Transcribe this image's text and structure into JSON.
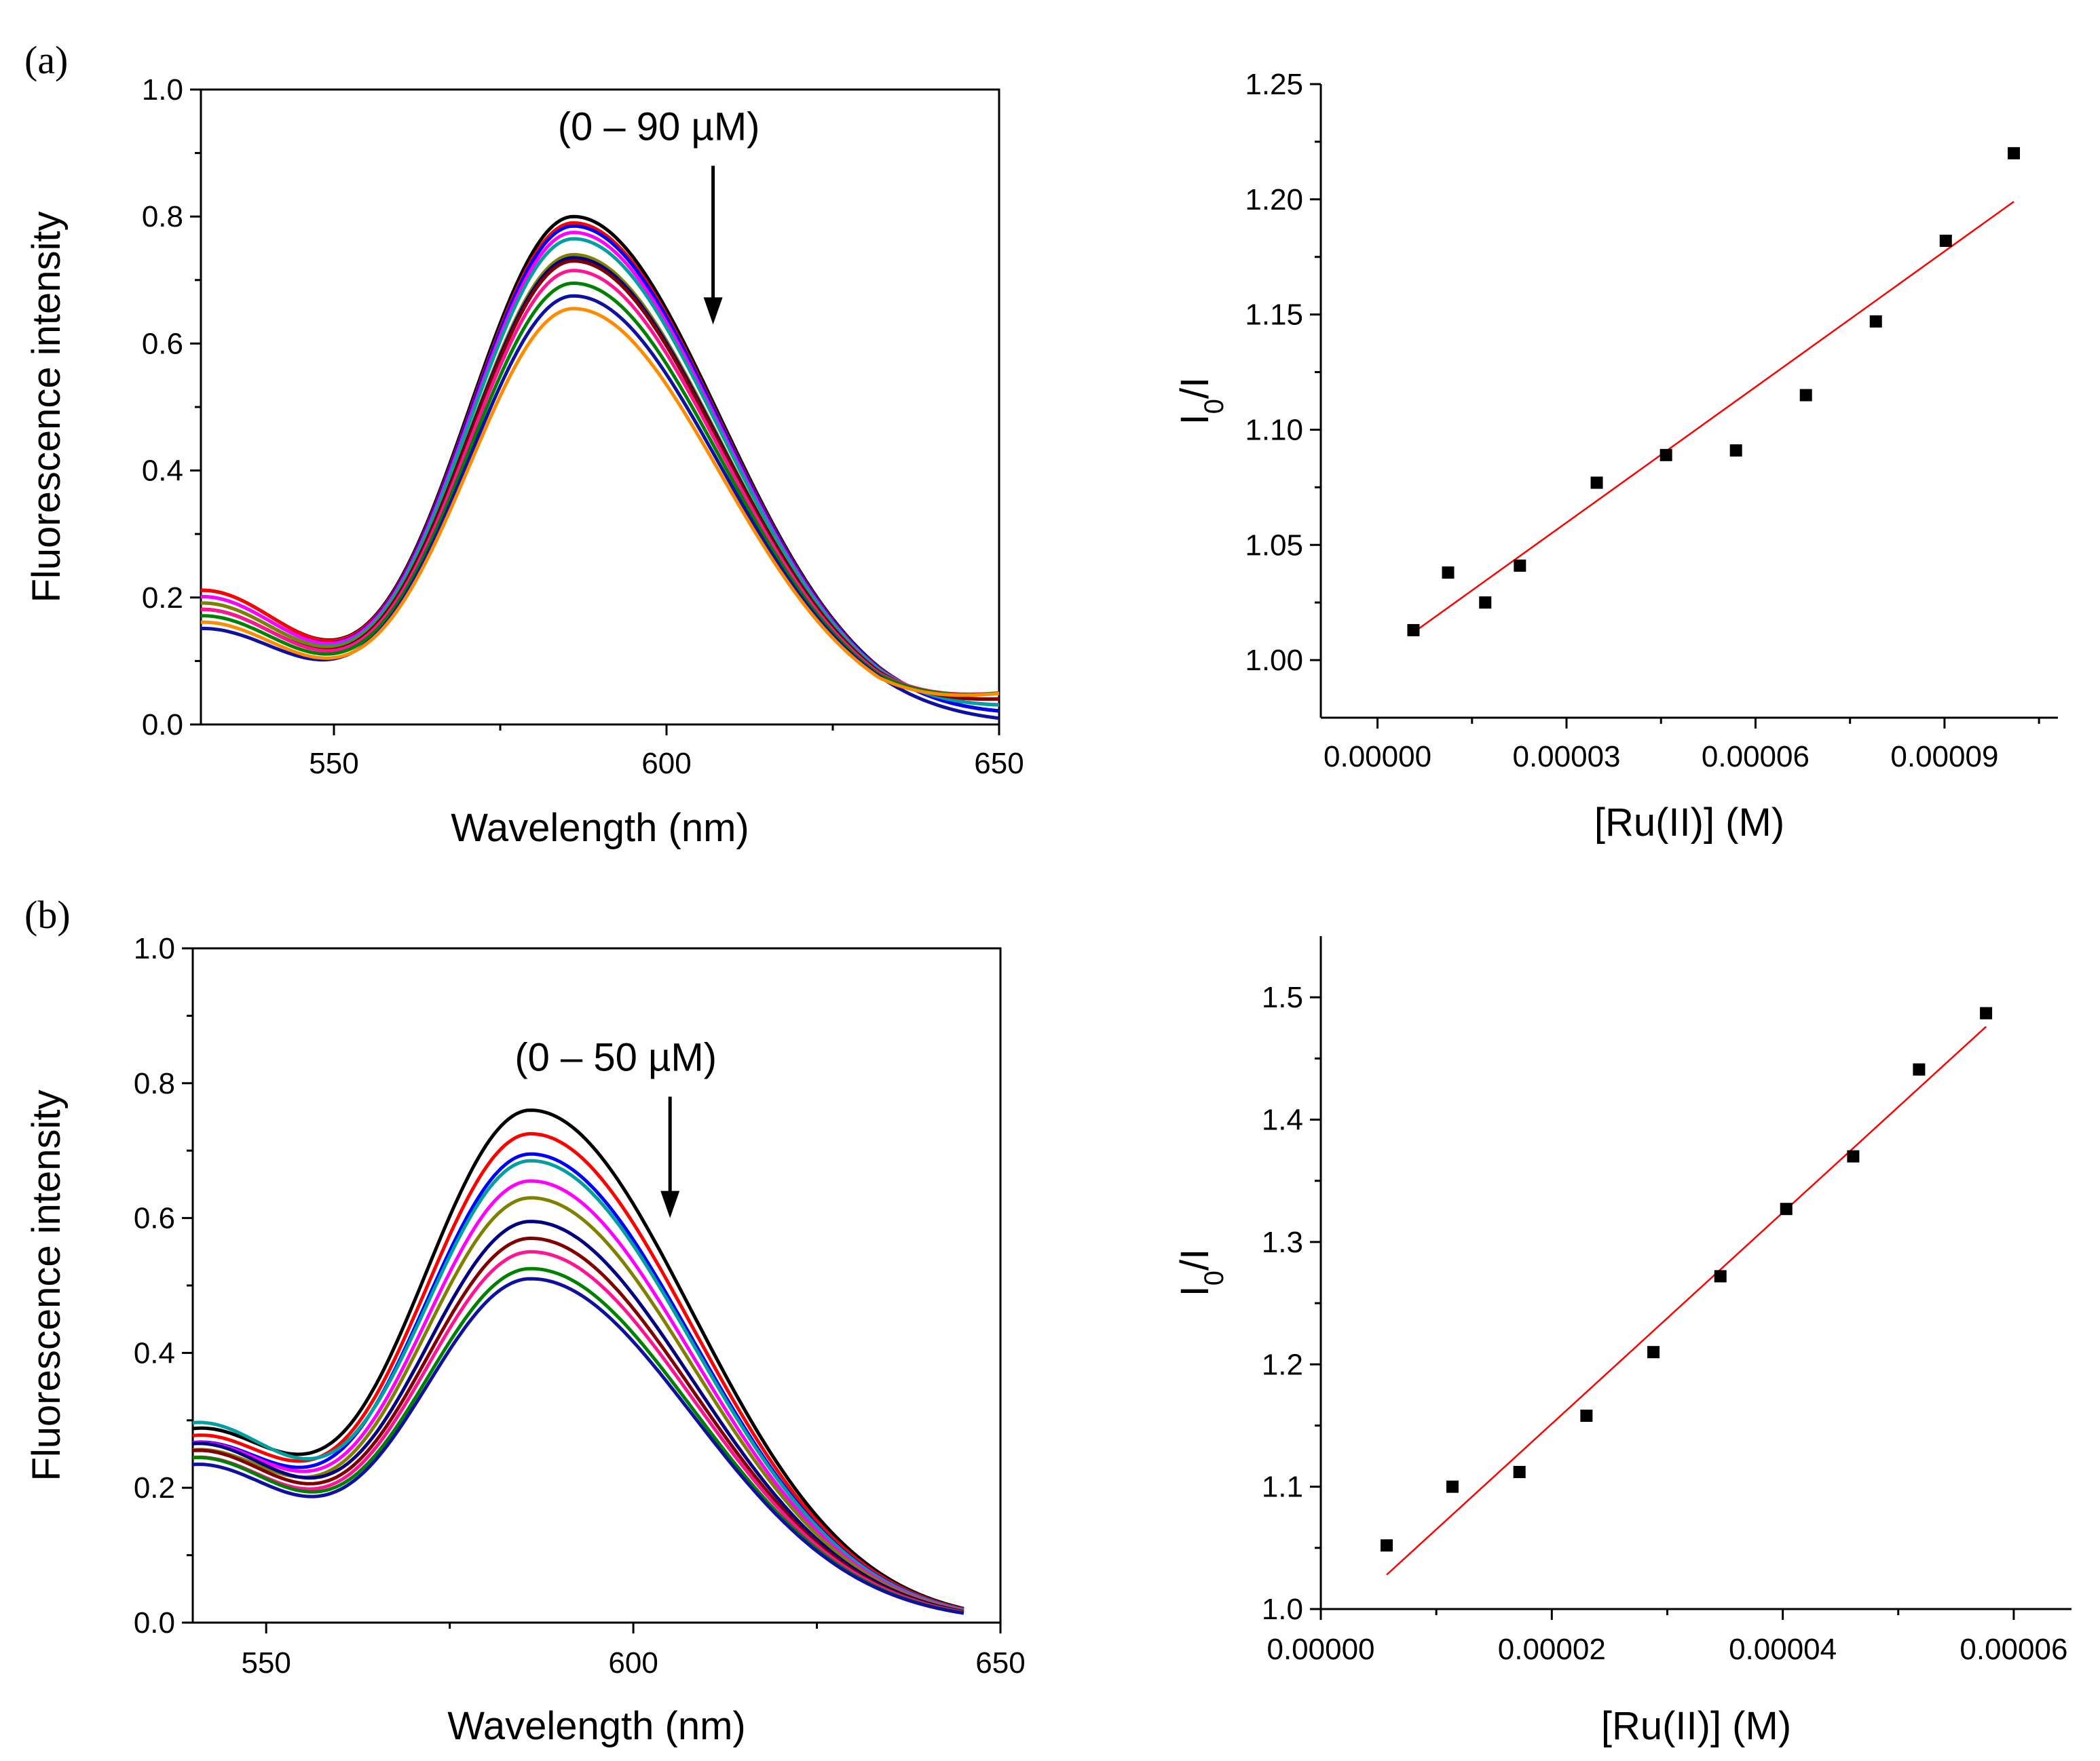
{
  "figure": {
    "panel_a_label": "(a)",
    "panel_b_label": "(b)"
  },
  "chart_data": [
    {
      "id": "a-spectra",
      "type": "line",
      "xlabel": "Wavelength (nm)",
      "ylabel": "Fluorescence intensity",
      "xlim": [
        530,
        650
      ],
      "ylim": [
        0.0,
        1.0
      ],
      "xticks": [
        550,
        600,
        650
      ],
      "xtick_labels": [
        "550",
        "600",
        "650"
      ],
      "yticks": [
        0.0,
        0.2,
        0.4,
        0.6,
        0.8,
        1.0
      ],
      "ytick_labels": [
        "0.0",
        "0.2",
        "0.4",
        "0.6",
        "0.8",
        "1.0"
      ],
      "annotation": "(0 – 90 µM)",
      "annotation_arrow": {
        "x": 607,
        "y_from": 0.88,
        "y_to": 0.63
      },
      "x_curve_end": 650,
      "series": [
        {
          "color": "#000000",
          "peak": 0.8,
          "start": 0.21,
          "end": 0.01
        },
        {
          "color": "#ff0000",
          "peak": 0.79,
          "start": 0.21,
          "end": 0.01
        },
        {
          "color": "#0000ff",
          "peak": 0.785,
          "start": 0.2,
          "end": 0.01
        },
        {
          "color": "#ff00ff",
          "peak": 0.775,
          "start": 0.2,
          "end": 0.02
        },
        {
          "color": "#00a0a0",
          "peak": 0.765,
          "start": 0.19,
          "end": 0.02
        },
        {
          "color": "#808000",
          "peak": 0.74,
          "start": 0.19,
          "end": 0.03
        },
        {
          "color": "#000080",
          "peak": 0.735,
          "start": 0.18,
          "end": 0.03
        },
        {
          "color": "#800000",
          "peak": 0.73,
          "start": 0.18,
          "end": 0.03
        },
        {
          "color": "#ff1493",
          "peak": 0.715,
          "start": 0.18,
          "end": 0.04
        },
        {
          "color": "#008000",
          "peak": 0.695,
          "start": 0.17,
          "end": 0.04
        },
        {
          "color": "#1010a0",
          "peak": 0.675,
          "start": 0.15,
          "end": 0.0
        },
        {
          "color": "#ff8c00",
          "peak": 0.655,
          "start": 0.16,
          "end": 0.04
        }
      ]
    },
    {
      "id": "a-stern-volmer",
      "type": "scatter",
      "xlabel": "[Ru(II)] (M)",
      "ylabel": "I0/I",
      "ylabel_main": "I",
      "ylabel_sub": "0",
      "ylabel_tail": "/I",
      "xlim": [
        -9e-06,
        0.000108
      ],
      "ylim": [
        0.975,
        1.25
      ],
      "xticks": [
        0.0,
        3e-05,
        6e-05,
        9e-05
      ],
      "xtick_labels": [
        "0.00000",
        "0.00003",
        "0.00006",
        "0.00009"
      ],
      "xminor": [
        1.5e-05,
        4.5e-05,
        7.5e-05,
        0.000105
      ],
      "yticks": [
        1.0,
        1.05,
        1.1,
        1.15,
        1.2,
        1.25
      ],
      "ytick_labels": [
        "1.00",
        "1.05",
        "1.10",
        "1.15",
        "1.20",
        "1.25"
      ],
      "x": [
        5.7e-06,
        1.12e-05,
        1.71e-05,
        2.26e-05,
        3.48e-05,
        4.58e-05,
        5.69e-05,
        6.8e-05,
        7.91e-05,
        9.02e-05,
        0.000101
      ],
      "y": [
        1.013,
        1.038,
        1.025,
        1.041,
        1.077,
        1.089,
        1.091,
        1.115,
        1.147,
        1.182,
        1.22
      ],
      "fit": {
        "x": [
          5.7e-06,
          0.000101
        ],
        "y": [
          1.012,
          1.199
        ],
        "color": "#ff0000"
      }
    },
    {
      "id": "b-spectra",
      "type": "line",
      "xlabel": "Wavelength (nm)",
      "ylabel": "Fluorescence intensity",
      "xlim": [
        540,
        650
      ],
      "ylim": [
        0.0,
        1.0
      ],
      "xticks": [
        550,
        600,
        650
      ],
      "xtick_labels": [
        "550",
        "600",
        "650"
      ],
      "yticks": [
        0.0,
        0.2,
        0.4,
        0.6,
        0.8,
        1.0
      ],
      "ytick_labels": [
        "0.0",
        "0.2",
        "0.4",
        "0.6",
        "0.8",
        "1.0"
      ],
      "annotation": "(0 – 50 µM)",
      "annotation_arrow": {
        "x": 605,
        "y_from": 0.78,
        "y_to": 0.6
      },
      "x_curve_end": 645,
      "series": [
        {
          "color": "#000000",
          "peak": 0.76,
          "start": 0.28,
          "end": 0.0
        },
        {
          "color": "#ff0000",
          "peak": 0.725,
          "start": 0.27,
          "end": 0.0
        },
        {
          "color": "#0000ff",
          "peak": 0.695,
          "start": 0.26,
          "end": 0.0
        },
        {
          "color": "#00a0a0",
          "peak": 0.685,
          "start": 0.29,
          "end": 0.0
        },
        {
          "color": "#ff00ff",
          "peak": 0.655,
          "start": 0.26,
          "end": 0.0
        },
        {
          "color": "#808000",
          "peak": 0.63,
          "start": 0.25,
          "end": 0.0
        },
        {
          "color": "#000080",
          "peak": 0.595,
          "start": 0.26,
          "end": 0.0
        },
        {
          "color": "#800000",
          "peak": 0.57,
          "start": 0.25,
          "end": 0.0
        },
        {
          "color": "#ff1493",
          "peak": 0.55,
          "start": 0.24,
          "end": 0.0
        },
        {
          "color": "#008000",
          "peak": 0.525,
          "start": 0.24,
          "end": 0.0
        },
        {
          "color": "#1010a0",
          "peak": 0.51,
          "start": 0.23,
          "end": 0.0
        }
      ]
    },
    {
      "id": "b-stern-volmer",
      "type": "scatter",
      "xlabel": "[Ru(II)] (M)",
      "ylabel": "I0/I",
      "ylabel_main": "I",
      "ylabel_sub": "0",
      "ylabel_tail": "/I",
      "xlim": [
        0.0,
        6.5e-05
      ],
      "ylim": [
        1.0,
        1.55
      ],
      "xticks": [
        0.0,
        2e-05,
        4e-05,
        6e-05
      ],
      "xtick_labels": [
        "0.00000",
        "0.00002",
        "0.00004",
        "0.00006"
      ],
      "xminor": [
        1e-05,
        3e-05,
        5e-05
      ],
      "yticks": [
        1.0,
        1.1,
        1.2,
        1.3,
        1.4,
        1.5
      ],
      "ytick_labels": [
        "1.0",
        "1.1",
        "1.2",
        "1.3",
        "1.4",
        "1.5"
      ],
      "x": [
        5.7e-06,
        1.14e-05,
        1.72e-05,
        2.3e-05,
        2.88e-05,
        3.46e-05,
        4.03e-05,
        4.61e-05,
        5.18e-05,
        5.76e-05
      ],
      "y": [
        1.052,
        1.1,
        1.112,
        1.158,
        1.21,
        1.272,
        1.327,
        1.37,
        1.441,
        1.487
      ],
      "fit": {
        "x": [
          5.7e-06,
          5.76e-05
        ],
        "y": [
          1.028,
          1.476
        ],
        "color": "#ff0000"
      }
    }
  ]
}
